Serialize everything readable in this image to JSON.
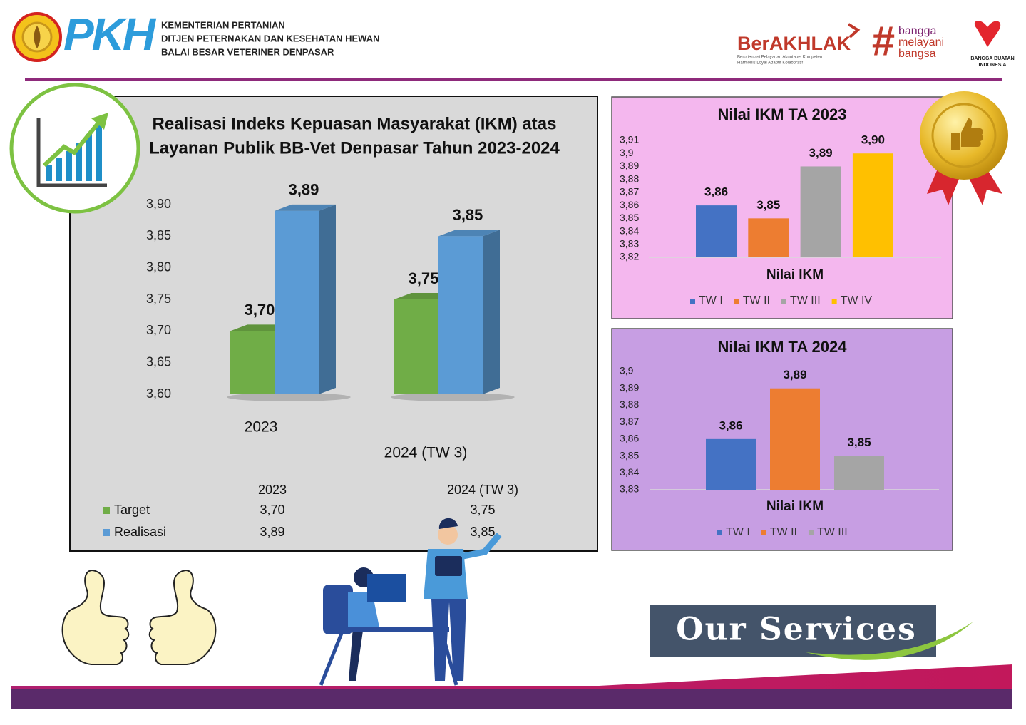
{
  "header": {
    "logo_text": "PKH",
    "lines": [
      "KEMENTERIAN PERTANIAN",
      "DITJEN PETERNAKAN DAN KESEHATAN HEWAN",
      "BALAI BESAR VETERINER DENPASAR"
    ],
    "berakhlak": "BerAKHLAK",
    "berakhlak_tagline": [
      "Berorientasi Pelayanan Akuntabel Kompeten",
      "Harmonis Loyal Adaptif Kolaboratif"
    ],
    "bangga": [
      "bangga",
      "melayani",
      "bangsa"
    ],
    "bbi": [
      "BANGGA BUATAN",
      "INDONESIA"
    ]
  },
  "chart_data": [
    {
      "type": "bar",
      "title": [
        "Realisasi Indeks Kepuasan Masyarakat (IKM) atas",
        "Layanan Publik BB-Vet Denpasar Tahun 2023-2024"
      ],
      "categories": [
        "2023",
        "2024 (TW 3)"
      ],
      "series": [
        {
          "name": "Target",
          "color": "#70ad47",
          "values": [
            3.7,
            3.75
          ],
          "value_labels": [
            "3,70",
            "3,75"
          ]
        },
        {
          "name": "Realisasi",
          "color": "#5b9bd5",
          "values": [
            3.89,
            3.85
          ],
          "value_labels": [
            "3,89",
            "3,85"
          ]
        }
      ],
      "ylim": [
        3.6,
        3.9
      ],
      "yticks": [
        {
          "value": 3.6,
          "label": "3,60"
        },
        {
          "value": 3.65,
          "label": "3,65"
        },
        {
          "value": 3.7,
          "label": "3,70"
        },
        {
          "value": 3.75,
          "label": "3,75"
        },
        {
          "value": 3.8,
          "label": "3,80"
        },
        {
          "value": 3.85,
          "label": "3,85"
        },
        {
          "value": 3.9,
          "label": "3,90"
        }
      ],
      "data_table": true
    },
    {
      "type": "bar",
      "title": "Nilai IKM TA 2023",
      "categories": [
        "Nilai IKM"
      ],
      "series": [
        {
          "name": "TW I",
          "color": "#4472c4",
          "values": [
            3.86
          ],
          "value_labels": [
            "3,86"
          ]
        },
        {
          "name": "TW II",
          "color": "#ed7d31",
          "values": [
            3.85
          ],
          "value_labels": [
            "3,85"
          ]
        },
        {
          "name": "TW III",
          "color": "#a5a5a5",
          "values": [
            3.89
          ],
          "value_labels": [
            "3,89"
          ]
        },
        {
          "name": "TW IV",
          "color": "#ffc000",
          "values": [
            3.9
          ],
          "value_labels": [
            "3,90"
          ]
        }
      ],
      "ylim": [
        3.82,
        3.91
      ],
      "yticks": [
        {
          "value": 3.82,
          "label": "3,82"
        },
        {
          "value": 3.83,
          "label": "3,83"
        },
        {
          "value": 3.84,
          "label": "3,84"
        },
        {
          "value": 3.85,
          "label": "3,85"
        },
        {
          "value": 3.86,
          "label": "3,86"
        },
        {
          "value": 3.87,
          "label": "3,87"
        },
        {
          "value": 3.88,
          "label": "3,88"
        },
        {
          "value": 3.89,
          "label": "3,89"
        },
        {
          "value": 3.9,
          "label": "3,9"
        },
        {
          "value": 3.91,
          "label": "3,91"
        }
      ],
      "legend": "bottom"
    },
    {
      "type": "bar",
      "title": "Nilai IKM TA 2024",
      "categories": [
        "Nilai IKM"
      ],
      "series": [
        {
          "name": "TW I",
          "color": "#4472c4",
          "values": [
            3.86
          ],
          "value_labels": [
            "3,86"
          ]
        },
        {
          "name": "TW II",
          "color": "#ed7d31",
          "values": [
            3.89
          ],
          "value_labels": [
            "3,89"
          ]
        },
        {
          "name": "TW III",
          "color": "#a5a5a5",
          "values": [
            3.85
          ],
          "value_labels": [
            "3,85"
          ]
        }
      ],
      "ylim": [
        3.83,
        3.9
      ],
      "yticks": [
        {
          "value": 3.83,
          "label": "3,83"
        },
        {
          "value": 3.84,
          "label": "3,84"
        },
        {
          "value": 3.85,
          "label": "3,85"
        },
        {
          "value": 3.86,
          "label": "3,86"
        },
        {
          "value": 3.87,
          "label": "3,87"
        },
        {
          "value": 3.88,
          "label": "3,88"
        },
        {
          "value": 3.89,
          "label": "3,89"
        },
        {
          "value": 3.9,
          "label": "3,9"
        }
      ],
      "legend": "bottom"
    }
  ],
  "banner": "Our Services"
}
